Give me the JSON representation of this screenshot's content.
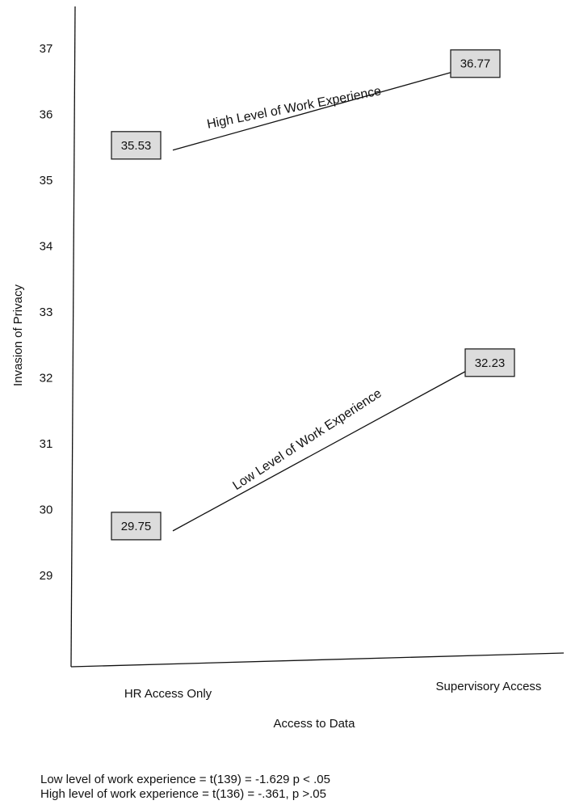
{
  "chart_data": {
    "type": "line",
    "title": "",
    "xlabel": "Access to Data",
    "ylabel": "Invasion of Privacy",
    "categories": [
      "HR Access Only",
      "Supervisory Access"
    ],
    "y_ticks": [
      29,
      30,
      31,
      32,
      33,
      34,
      35,
      36,
      37
    ],
    "ylim": [
      28,
      37.6
    ],
    "grid": false,
    "series": [
      {
        "name": "High Level of Work Experience",
        "values": [
          35.53,
          36.77
        ],
        "value_labels": [
          "35.53",
          "36.77"
        ]
      },
      {
        "name": "Low Level of Work Experience",
        "values": [
          29.75,
          32.23
        ],
        "value_labels": [
          "29.75",
          "32.23"
        ]
      }
    ]
  },
  "notes": [
    "Low level of work experience = t(139) = -1.629 p < .05",
    "High level of work experience = t(136) = -.361, p >.05"
  ]
}
